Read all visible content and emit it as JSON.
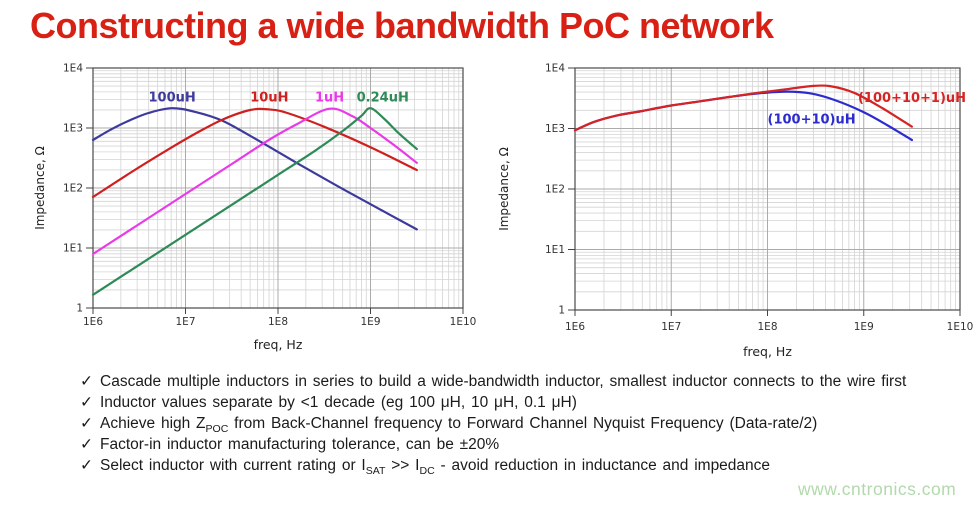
{
  "title": "Constructing a wide bandwidth PoC network",
  "title_color": "#d82014",
  "watermark": "www.cntronics.com",
  "watermark_color": "#b2d9ac",
  "bullet_marker": "✓",
  "bullets": [
    {
      "segments": [
        {
          "text": "Cascade multiple inductors in series to build a wide-bandwidth inductor, smallest inductor connects to the wire first"
        }
      ]
    },
    {
      "segments": [
        {
          "text": "Inductor values separate by <1 decade (eg 100 μH, 10 μH, 0.1 μH)"
        }
      ]
    },
    {
      "segments": [
        {
          "text": "Achieve high Z"
        },
        {
          "sub": "POC"
        },
        {
          "text": " from Back-Channel frequency to Forward Channel Nyquist Frequency (Data-rate/2)"
        }
      ]
    },
    {
      "segments": [
        {
          "text": "Factor-in inductor manufacturing tolerance, can be ±20%"
        }
      ]
    },
    {
      "segments": [
        {
          "text": "Select inductor with current rating or I"
        },
        {
          "sub": "SAT"
        },
        {
          "text": " >> I"
        },
        {
          "sub": "DC"
        },
        {
          "text": " - avoid reduction in inductance and impedance"
        }
      ]
    }
  ],
  "chart_data": [
    {
      "type": "line",
      "name": "single-inductor-impedance",
      "xlabel": "freq, Hz",
      "ylabel": "Impedance, Ω",
      "x_scale": "log",
      "y_scale": "log",
      "x_range_log": [
        6,
        10
      ],
      "y_range_log": [
        0,
        4
      ],
      "grid": true,
      "x_ticks": [
        {
          "log": 6,
          "label": "1E6"
        },
        {
          "log": 7,
          "label": "1E7"
        },
        {
          "log": 8,
          "label": "1E8"
        },
        {
          "log": 9,
          "label": "1E9"
        },
        {
          "log": 10,
          "label": "1E10"
        }
      ],
      "y_ticks": [
        {
          "log": 0,
          "label": "1"
        },
        {
          "log": 1,
          "label": "1E1"
        },
        {
          "log": 2,
          "label": "1E2"
        },
        {
          "log": 3,
          "label": "1E3"
        },
        {
          "log": 4,
          "label": "1E4"
        }
      ],
      "series": [
        {
          "name": "100uH",
          "color": "#3d3a9b",
          "label_pos": [
            6.6,
            3.44
          ],
          "points": [
            [
              6.0,
              2.8
            ],
            [
              6.2,
              2.98
            ],
            [
              6.4,
              3.13
            ],
            [
              6.6,
              3.25
            ],
            [
              6.85,
              3.33
            ],
            [
              7.1,
              3.27
            ],
            [
              7.4,
              3.12
            ],
            [
              7.8,
              2.78
            ],
            [
              8.2,
              2.42
            ],
            [
              8.6,
              2.07
            ],
            [
              9.0,
              1.73
            ],
            [
              9.5,
              1.31
            ]
          ]
        },
        {
          "name": "10uH",
          "color": "#cf2020",
          "label_pos": [
            7.7,
            3.44
          ],
          "points": [
            [
              6.0,
              1.85
            ],
            [
              6.4,
              2.25
            ],
            [
              6.8,
              2.63
            ],
            [
              7.1,
              2.9
            ],
            [
              7.4,
              3.14
            ],
            [
              7.7,
              3.3
            ],
            [
              7.9,
              3.31
            ],
            [
              8.1,
              3.25
            ],
            [
              8.5,
              3.02
            ],
            [
              9.0,
              2.68
            ],
            [
              9.5,
              2.3
            ]
          ]
        },
        {
          "name": "1uH",
          "color": "#e83ae8",
          "label_pos": [
            8.4,
            3.44
          ],
          "points": [
            [
              6.0,
              0.9
            ],
            [
              6.5,
              1.4
            ],
            [
              7.0,
              1.9
            ],
            [
              7.5,
              2.4
            ],
            [
              7.9,
              2.8
            ],
            [
              8.2,
              3.06
            ],
            [
              8.55,
              3.32
            ],
            [
              8.8,
              3.2
            ],
            [
              9.0,
              3.0
            ],
            [
              9.25,
              2.72
            ],
            [
              9.5,
              2.42
            ]
          ]
        },
        {
          "name": "0.24uH",
          "color": "#2e8b57",
          "label_pos": [
            8.85,
            3.44
          ],
          "points": [
            [
              6.0,
              0.22
            ],
            [
              6.5,
              0.72
            ],
            [
              7.0,
              1.22
            ],
            [
              7.5,
              1.72
            ],
            [
              8.0,
              2.22
            ],
            [
              8.4,
              2.62
            ],
            [
              8.7,
              2.95
            ],
            [
              8.9,
              3.2
            ],
            [
              9.0,
              3.33
            ],
            [
              9.15,
              3.15
            ],
            [
              9.3,
              2.92
            ],
            [
              9.5,
              2.65
            ]
          ]
        }
      ]
    },
    {
      "type": "line",
      "name": "cascaded-inductor-impedance",
      "xlabel": "freq, Hz",
      "ylabel": "Impedance, Ω",
      "x_scale": "log",
      "y_scale": "log",
      "x_range_log": [
        6,
        10
      ],
      "y_range_log": [
        0,
        4
      ],
      "grid": true,
      "x_ticks": [
        {
          "log": 6,
          "label": "1E6"
        },
        {
          "log": 7,
          "label": "1E7"
        },
        {
          "log": 8,
          "label": "1E8"
        },
        {
          "log": 9,
          "label": "1E9"
        },
        {
          "log": 10,
          "label": "1E10"
        }
      ],
      "y_ticks": [
        {
          "log": 0,
          "label": "1"
        },
        {
          "log": 1,
          "label": "1E1"
        },
        {
          "log": 2,
          "label": "1E2"
        },
        {
          "log": 3,
          "label": "1E3"
        },
        {
          "log": 4,
          "label": "1E4"
        }
      ],
      "series": [
        {
          "name": "(100+10)uH",
          "color": "#2b2bd0",
          "label_pos": [
            8.0,
            3.08
          ],
          "points": [
            [
              6.0,
              2.97
            ],
            [
              6.2,
              3.11
            ],
            [
              6.45,
              3.22
            ],
            [
              6.7,
              3.29
            ],
            [
              7.0,
              3.38
            ],
            [
              7.3,
              3.45
            ],
            [
              7.6,
              3.52
            ],
            [
              7.9,
              3.58
            ],
            [
              8.2,
              3.61
            ],
            [
              8.45,
              3.58
            ],
            [
              8.7,
              3.47
            ],
            [
              9.0,
              3.27
            ],
            [
              9.25,
              3.05
            ],
            [
              9.5,
              2.81
            ]
          ]
        },
        {
          "name": "(100+10+1)uH",
          "color": "#d62323",
          "label_pos": [
            8.94,
            3.44
          ],
          "points": [
            [
              6.0,
              2.97
            ],
            [
              6.2,
              3.11
            ],
            [
              6.45,
              3.22
            ],
            [
              6.7,
              3.29
            ],
            [
              7.0,
              3.38
            ],
            [
              7.3,
              3.45
            ],
            [
              7.6,
              3.52
            ],
            [
              7.9,
              3.59
            ],
            [
              8.2,
              3.65
            ],
            [
              8.45,
              3.7
            ],
            [
              8.65,
              3.7
            ],
            [
              8.9,
              3.59
            ],
            [
              9.2,
              3.33
            ],
            [
              9.5,
              3.03
            ]
          ]
        }
      ]
    }
  ]
}
